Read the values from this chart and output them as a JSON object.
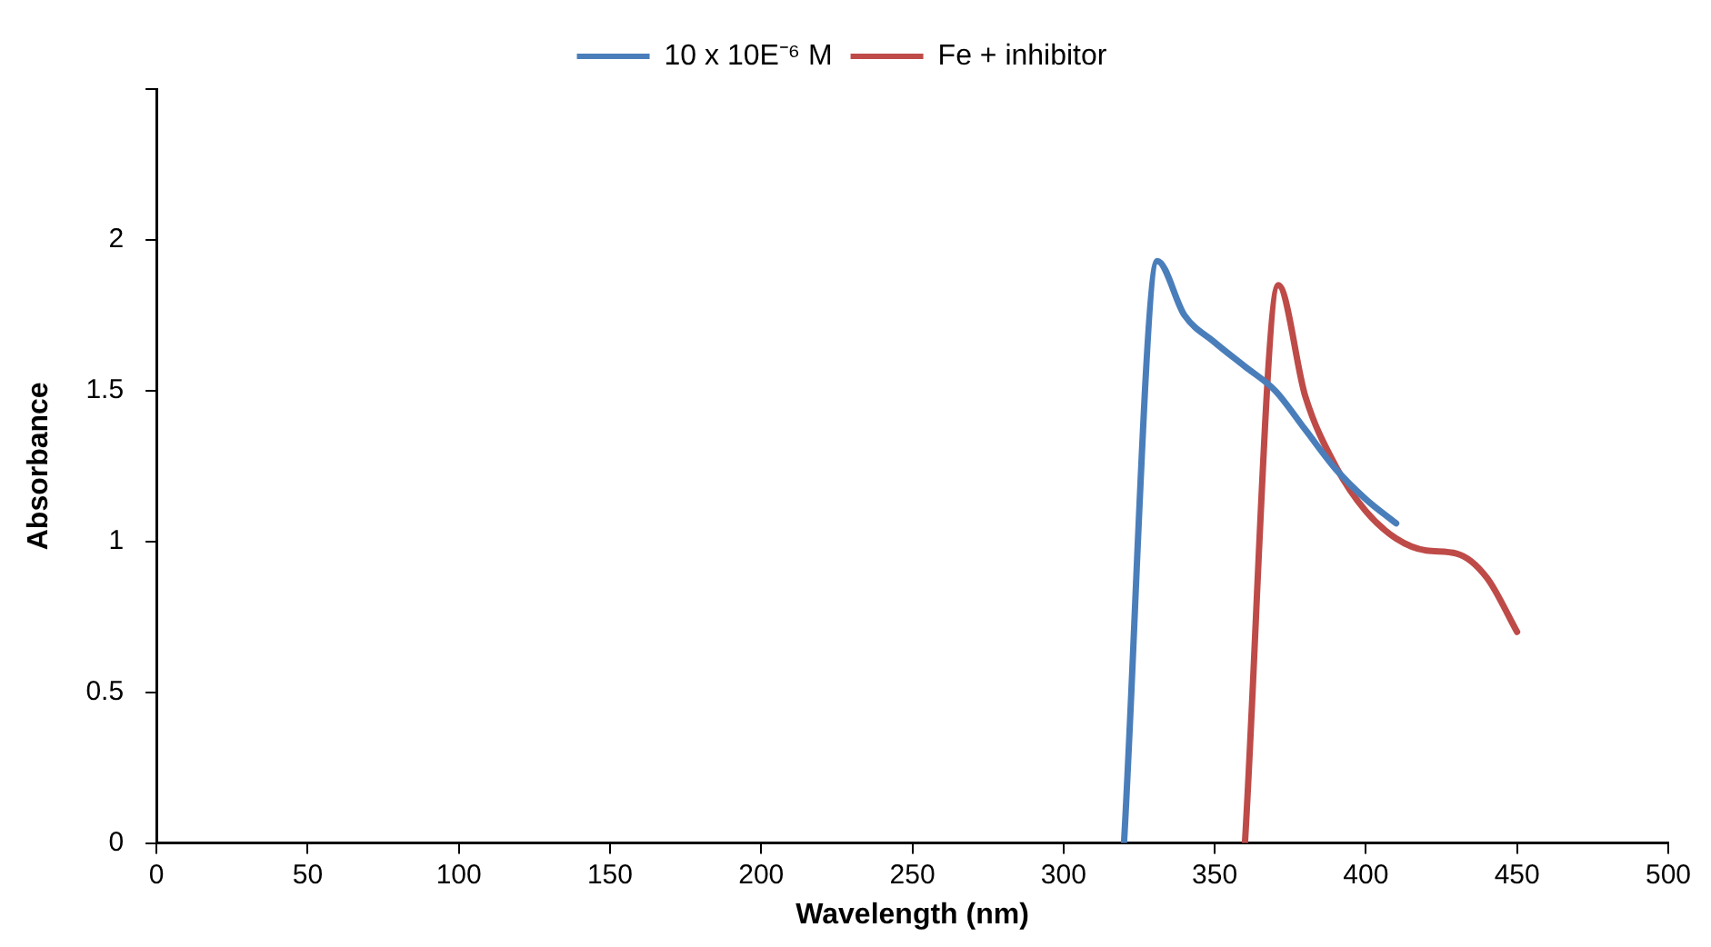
{
  "chart_data": {
    "type": "line",
    "xlabel": "Wavelength (nm)",
    "ylabel": "Absorbance",
    "xlim": [
      0,
      500
    ],
    "xticks": [
      0,
      50,
      100,
      150,
      200,
      250,
      300,
      350,
      400,
      450,
      500
    ],
    "ylim": [
      0,
      2.5
    ],
    "yticks": [
      0,
      0.5,
      1,
      1.5,
      2,
      {
        "value": 2.5,
        "label": null
      }
    ],
    "grid": false,
    "legend": "top",
    "marker": "none",
    "line_style": "solid",
    "series": [
      {
        "name": "10 x 10E⁻⁶ M",
        "color": "#4a7ebb",
        "x": [
          320,
          331,
          340,
          350,
          360,
          370,
          380,
          390,
          400,
          410
        ],
        "values": [
          0,
          1.93,
          1.75,
          1.66,
          1.58,
          1.5,
          1.37,
          1.24,
          1.14,
          1.06
        ]
      },
      {
        "name": "Fe + inhibitor",
        "color": "#be4b48",
        "x": [
          360,
          371,
          380,
          390,
          400,
          410,
          420,
          430,
          440,
          450
        ],
        "values": [
          0,
          1.85,
          1.48,
          1.25,
          1.1,
          1.01,
          0.97,
          0.96,
          0.88,
          0.7
        ]
      }
    ]
  }
}
